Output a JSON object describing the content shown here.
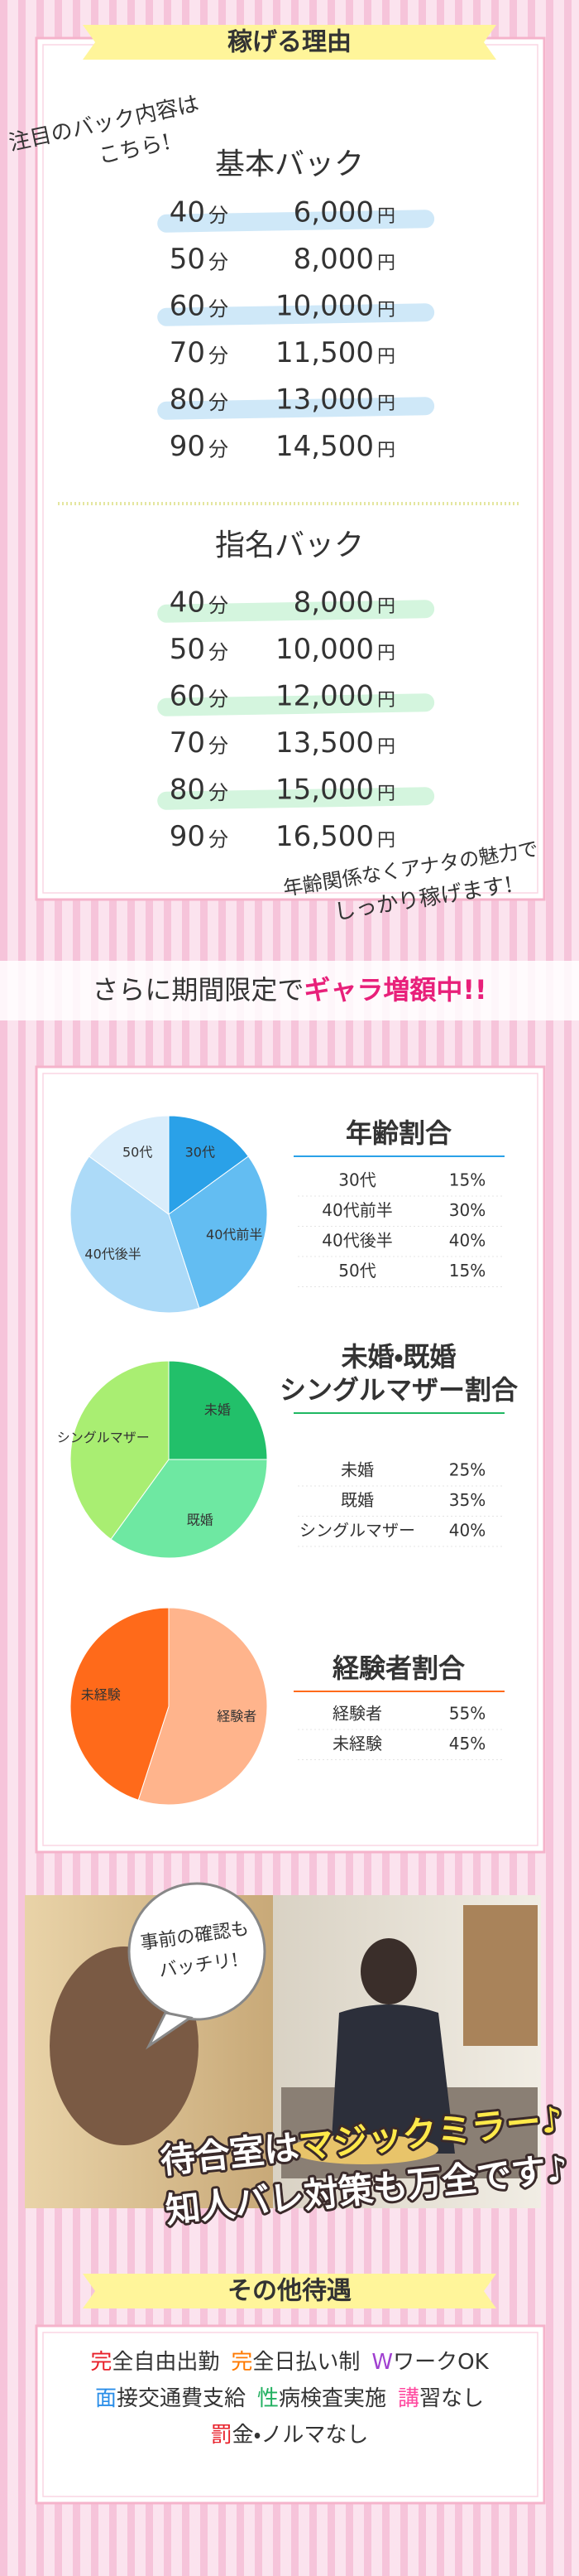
{
  "header": {
    "title": "稼げる理由"
  },
  "note": {
    "lines": [
      "注目のバック内容は",
      "こちら!"
    ]
  },
  "basic_back": {
    "title": "基本バック",
    "rows": [
      {
        "time": "40",
        "time_unit": "分",
        "pay": "6,000",
        "pay_unit": "円"
      },
      {
        "time": "50",
        "time_unit": "分",
        "pay": "8,000",
        "pay_unit": "円"
      },
      {
        "time": "60",
        "time_unit": "分",
        "pay": "10,000",
        "pay_unit": "円"
      },
      {
        "time": "70",
        "time_unit": "分",
        "pay": "11,500",
        "pay_unit": "円"
      },
      {
        "time": "80",
        "time_unit": "分",
        "pay": "13,000",
        "pay_unit": "円"
      },
      {
        "time": "90",
        "time_unit": "分",
        "pay": "14,500",
        "pay_unit": "円"
      }
    ]
  },
  "nominated_back": {
    "title": "指名バック",
    "rows": [
      {
        "time": "40",
        "time_unit": "分",
        "pay": "8,000",
        "pay_unit": "円"
      },
      {
        "time": "50",
        "time_unit": "分",
        "pay": "10,000",
        "pay_unit": "円"
      },
      {
        "time": "60",
        "time_unit": "分",
        "pay": "12,000",
        "pay_unit": "円"
      },
      {
        "time": "70",
        "time_unit": "分",
        "pay": "13,500",
        "pay_unit": "円"
      },
      {
        "time": "80",
        "time_unit": "分",
        "pay": "15,000",
        "pay_unit": "円"
      },
      {
        "time": "90",
        "time_unit": "分",
        "pay": "16,500",
        "pay_unit": "円"
      }
    ]
  },
  "closing_note": {
    "lines": [
      "年齢関係なくアナタの魅力で",
      "しっかり稼げます!"
    ]
  },
  "campaign": {
    "prefix": "さらに期間限定で",
    "highlight": "ギャラ増額中!!"
  },
  "ratios": [
    {
      "type": "pie",
      "title_lines": [
        "年齢割合"
      ],
      "title_color": "#2aa1e8",
      "categories": [
        "30代",
        "40代前半",
        "40代後半",
        "50代"
      ],
      "values": [
        15,
        30,
        40,
        15
      ],
      "value_labels": [
        "15%",
        "30%",
        "40%",
        "15%"
      ],
      "colors": [
        "#2aa1e8",
        "#63bdf2",
        "#acdaf8",
        "#d9edfb"
      ],
      "label_colors": [
        "#2aa1e8",
        "#444444",
        "#2aa1e8",
        "#444444"
      ]
    },
    {
      "type": "pie",
      "title_lines": [
        "未婚・既婚",
        "シングルマザー割合"
      ],
      "title_color": "#1fb862",
      "categories": [
        "未婚",
        "既婚",
        "シングルマザー"
      ],
      "values": [
        25,
        35,
        40
      ],
      "value_labels": [
        "25%",
        "35%",
        "40%"
      ],
      "colors": [
        "#22c06a",
        "#6ee8a2",
        "#a9ee72"
      ],
      "label_colors": [
        "#444444",
        "#1fb862",
        "#444444"
      ]
    },
    {
      "type": "pie",
      "title_lines": [
        "経験者割合"
      ],
      "title_color": "#ff6a1a",
      "categories": [
        "経験者",
        "未経験"
      ],
      "values": [
        55,
        45
      ],
      "value_labels": [
        "55%",
        "45%"
      ],
      "colors": [
        "#ffb48c",
        "#ff6a1a"
      ],
      "label_colors": [
        "#444444",
        "#ff6a1a"
      ]
    }
  ],
  "photo": {
    "bubble_lines": [
      "事前の確認も",
      "バッチリ!"
    ],
    "caption_lines": [
      [
        "待合室は",
        "マジックミラー♪"
      ],
      [
        "知人バレ対策も万全です♪"
      ]
    ]
  },
  "benefits": {
    "title": "その他待遇",
    "lines": [
      [
        {
          "head": "完",
          "rest": "全自由出勤",
          "color": "#e8202a"
        },
        {
          "head": "完",
          "rest": "全日払い制",
          "color": "#ff7a00"
        },
        {
          "head": "W",
          "rest": "ワークOK",
          "color": "#a040d0"
        }
      ],
      [
        {
          "head": "面",
          "rest": "接交通費支給",
          "color": "#2a8ee8"
        },
        {
          "head": "性",
          "rest": "病検査実施",
          "color": "#22b060"
        },
        {
          "head": "講",
          "rest": "習なし",
          "color": "#ff4aa0"
        }
      ],
      [
        {
          "head": "罰",
          "rest": "金・ノルマなし",
          "color": "#e8202a"
        }
      ]
    ]
  }
}
